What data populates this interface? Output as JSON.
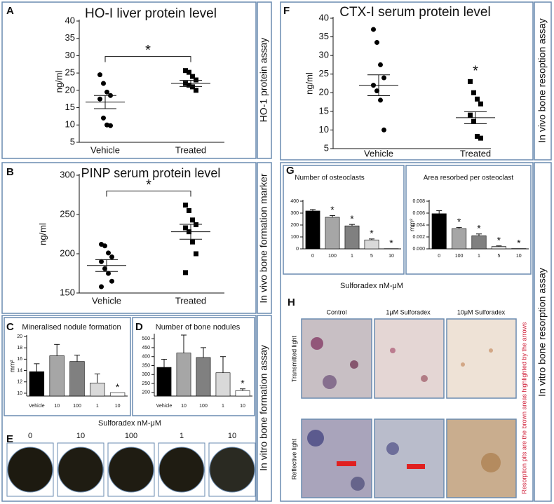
{
  "chart_data": [
    {
      "type": "dot",
      "panel": "A",
      "title": "HO-I liver protein level",
      "ylabel": "ng/ml",
      "ylim": [
        5,
        40
      ],
      "yticks": [
        5,
        10,
        15,
        20,
        25,
        30,
        35,
        40
      ],
      "significance": "*",
      "groups": [
        {
          "name": "Vehicle",
          "marker": "circle",
          "values": [
            24.5,
            22,
            19.5,
            18.5,
            17.5,
            12,
            10,
            9.8
          ],
          "mean": 16.6,
          "sem": 1.9
        },
        {
          "name": "Treated",
          "marker": "square",
          "values": [
            25.7,
            25.2,
            24,
            23,
            22,
            21.5,
            21,
            20
          ],
          "mean": 22,
          "sem": 0.9
        }
      ]
    },
    {
      "type": "dot",
      "panel": "B",
      "title": "PINP serum protein level",
      "ylabel": "ng/ml",
      "ylim": [
        150,
        300
      ],
      "yticks": [
        150,
        200,
        250,
        300
      ],
      "significance": "*",
      "groups": [
        {
          "name": "Vehicle",
          "marker": "circle",
          "values": [
            212,
            210,
            201,
            196,
            190,
            181,
            175,
            165,
            158
          ],
          "mean": 185,
          "sem": 7.5
        },
        {
          "name": "Treated",
          "marker": "square",
          "values": [
            262,
            255,
            243,
            237,
            233,
            228,
            215,
            200,
            176
          ],
          "mean": 228,
          "sem": 9.5
        }
      ]
    },
    {
      "type": "bar",
      "panel": "C",
      "title": "Mineralised nodule formation",
      "ylabel": "mm²",
      "ylim": [
        9.5,
        20
      ],
      "yticks": [
        10,
        12,
        14,
        16,
        18,
        20
      ],
      "categories": [
        "Vehicle",
        "10",
        "100",
        "1",
        "10"
      ],
      "values": [
        13.8,
        16.6,
        15.6,
        11.8,
        10.1
      ],
      "errors": [
        1.4,
        2,
        1.1,
        1.6,
        null
      ],
      "colors": [
        "#000000",
        "#a6a6a6",
        "#808080",
        "#d9d9d9",
        "#ffffff"
      ],
      "significance": [
        null,
        null,
        null,
        null,
        "*"
      ]
    },
    {
      "type": "bar",
      "panel": "D",
      "title": "Number of bone nodules",
      "ylim": [
        180,
        520
      ],
      "yticks": [
        200,
        250,
        300,
        350,
        400,
        450,
        500
      ],
      "categories": [
        "Vehicle",
        "10",
        "100",
        "1",
        "10"
      ],
      "values": [
        340,
        420,
        395,
        310,
        210
      ],
      "errors": [
        45,
        100,
        55,
        90,
        10
      ],
      "colors": [
        "#000000",
        "#a6a6a6",
        "#808080",
        "#d9d9d9",
        "#ffffff"
      ],
      "significance": [
        null,
        null,
        null,
        null,
        "*"
      ]
    },
    {
      "type": "dot",
      "panel": "F",
      "title": "CTX-I serum protein level",
      "ylabel": "ng/ml",
      "ylim": [
        5,
        40
      ],
      "yticks": [
        5,
        10,
        15,
        20,
        25,
        30,
        35,
        40
      ],
      "groups": [
        {
          "name": "Vehicle",
          "marker": "circle",
          "values": [
            37,
            33.5,
            27.5,
            24,
            22,
            20.5,
            18,
            10
          ],
          "mean": 22,
          "sem": 2.8
        },
        {
          "name": "Treated",
          "marker": "square",
          "values": [
            23,
            20,
            18.3,
            17,
            14,
            12.3,
            8.3,
            7.8
          ],
          "mean": 13.3,
          "sem": 1.6,
          "significance": "*"
        }
      ]
    },
    {
      "type": "bar",
      "panel": "G",
      "title": "Number of osteoclasts",
      "ylim": [
        0,
        400
      ],
      "yticks": [
        0,
        100,
        200,
        300,
        400
      ],
      "categories": [
        "0",
        "100",
        "1",
        "5",
        "10"
      ],
      "values": [
        318,
        265,
        193,
        75,
        2
      ],
      "errors": [
        12,
        15,
        12,
        8,
        null
      ],
      "colors": [
        "#000000",
        "#a6a6a6",
        "#808080",
        "#d9d9d9",
        "#ffffff"
      ],
      "significance": [
        null,
        "*",
        "*",
        "*",
        "*"
      ]
    },
    {
      "type": "bar",
      "title": "Area resorbed per osteoclast",
      "ylabel": "mm²",
      "ylim": [
        0,
        0.008
      ],
      "yticks": [
        {
          "value": 0,
          "label": "0.000"
        },
        {
          "value": 0.002,
          "label": "0.002"
        },
        {
          "value": 0.004,
          "label": "0.004"
        },
        {
          "value": 0.006,
          "label": "0.006"
        },
        {
          "value": 0.008,
          "label": "0.008"
        }
      ],
      "categories": [
        "0",
        "100",
        "1",
        "5",
        "10"
      ],
      "values": [
        0.0059,
        0.0034,
        0.0022,
        0.0004,
        5e-05
      ],
      "errors": [
        0.0005,
        0.0002,
        0.0003,
        0.0001,
        null
      ],
      "colors": [
        "#000000",
        "#a6a6a6",
        "#808080",
        "#d9d9d9",
        "#ffffff"
      ],
      "significance": [
        null,
        "*",
        "*",
        "*",
        "*"
      ]
    }
  ],
  "side_labels": [
    "HO-1 protein assay",
    "In vivo bone formation marker",
    "In vitro bone formation assay",
    "In vivo bone resoption assay",
    "In vitro bone resorption assay"
  ],
  "shared_xlabels": [
    "Sulforadex nM-μM",
    "Sulforadex nM-μM"
  ],
  "panel_E": {
    "letter": "E",
    "labels": [
      "0",
      "10",
      "100",
      "1",
      "10"
    ]
  },
  "panel_H": {
    "letter": "H",
    "columns": [
      "Control",
      "1μM Sulforadex",
      "10μM Sulforadex"
    ],
    "rows": [
      "Transmitted light",
      "Reflective light"
    ],
    "note": "Resorption pits are the brown areas highlighted by the arrows"
  }
}
